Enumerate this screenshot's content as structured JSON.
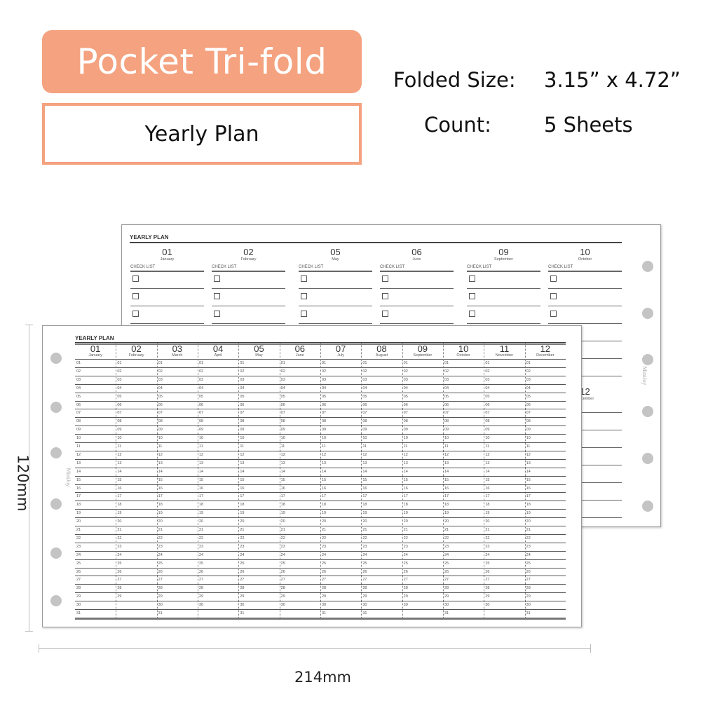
{
  "header": {
    "title": "Pocket Tri-fold",
    "subtitle": "Yearly Plan",
    "folded_size_label": "Folded Size:",
    "folded_size_value": "3.15” x 4.72”",
    "count_label": "Count:",
    "count_value": "5 Sheets",
    "accent_color": "#F4A27F"
  },
  "back_sheet": {
    "title": "YEARLY PLAN",
    "checklist_label": "CHECK LIST",
    "brand": "MiniJoy",
    "months": [
      {
        "num": "01",
        "name": "January"
      },
      {
        "num": "02",
        "name": "February"
      },
      {
        "num": "05",
        "name": "May"
      },
      {
        "num": "06",
        "name": "June"
      },
      {
        "num": "09",
        "name": "September"
      },
      {
        "num": "10",
        "name": "October"
      }
    ],
    "second_row_visible_month": {
      "num": "12",
      "name": "December"
    }
  },
  "front_sheet": {
    "title": "YEARLY PLAN",
    "brand": "MiniJoy",
    "months": [
      {
        "num": "01",
        "name": "January",
        "days": 31
      },
      {
        "num": "02",
        "name": "February",
        "days": 29
      },
      {
        "num": "03",
        "name": "March",
        "days": 31
      },
      {
        "num": "04",
        "name": "April",
        "days": 30
      },
      {
        "num": "05",
        "name": "May",
        "days": 31
      },
      {
        "num": "06",
        "name": "June",
        "days": 30
      },
      {
        "num": "07",
        "name": "July",
        "days": 31
      },
      {
        "num": "08",
        "name": "August",
        "days": 31
      },
      {
        "num": "09",
        "name": "September",
        "days": 30
      },
      {
        "num": "10",
        "name": "October",
        "days": 31
      },
      {
        "num": "11",
        "name": "November",
        "days": 30
      },
      {
        "num": "12",
        "name": "December",
        "days": 31
      }
    ]
  },
  "dimensions": {
    "height": "120mm",
    "width": "214mm"
  }
}
